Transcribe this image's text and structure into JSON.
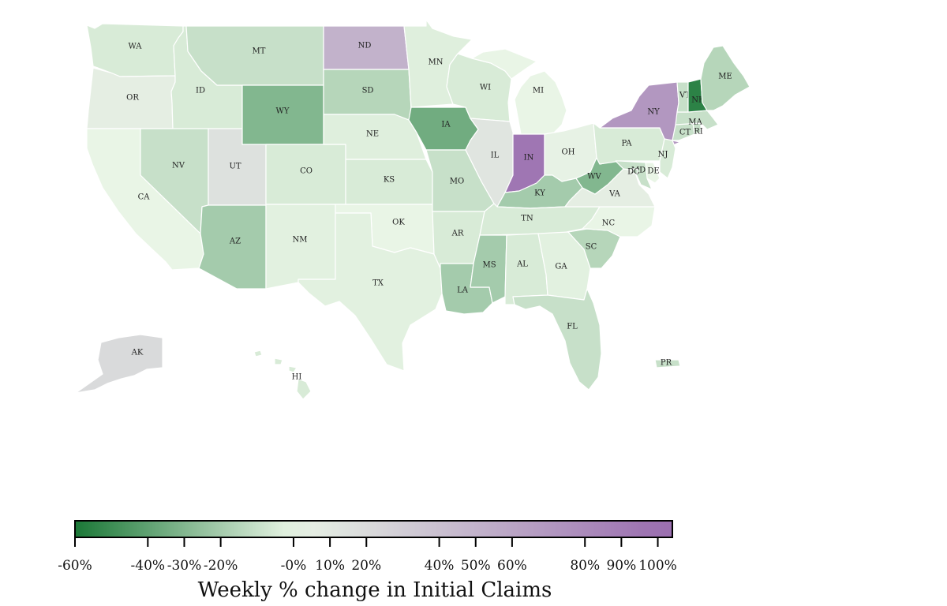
{
  "colors": {
    "scale_min": "#1b7837",
    "scale_mid": "#e9f5e6",
    "scale_max": "#9b6fb0"
  },
  "map": {
    "title": "",
    "states": [
      {
        "abbr": "WA",
        "change": -5
      },
      {
        "abbr": "OR",
        "change": 5
      },
      {
        "abbr": "CA",
        "change": 0
      },
      {
        "abbr": "ID",
        "change": -5
      },
      {
        "abbr": "NV",
        "change": -10
      },
      {
        "abbr": "UT",
        "change": 15
      },
      {
        "abbr": "AZ",
        "change": -20
      },
      {
        "abbr": "MT",
        "change": -10
      },
      {
        "abbr": "WY",
        "change": -30
      },
      {
        "abbr": "CO",
        "change": -5
      },
      {
        "abbr": "NM",
        "change": -2
      },
      {
        "abbr": "ND",
        "change": 50
      },
      {
        "abbr": "SD",
        "change": -15
      },
      {
        "abbr": "NE",
        "change": -3
      },
      {
        "abbr": "KS",
        "change": -5
      },
      {
        "abbr": "OK",
        "change": 0
      },
      {
        "abbr": "TX",
        "change": -2
      },
      {
        "abbr": "MN",
        "change": -3
      },
      {
        "abbr": "IA",
        "change": -35
      },
      {
        "abbr": "MO",
        "change": -10
      },
      {
        "abbr": "AR",
        "change": -5
      },
      {
        "abbr": "LA",
        "change": -20
      },
      {
        "abbr": "WI",
        "change": -5
      },
      {
        "abbr": "IL",
        "change": 12
      },
      {
        "abbr": "MI",
        "change": 0
      },
      {
        "abbr": "IN",
        "change": 95
      },
      {
        "abbr": "OH",
        "change": 2
      },
      {
        "abbr": "KY",
        "change": -20
      },
      {
        "abbr": "TN",
        "change": -5
      },
      {
        "abbr": "MS",
        "change": -20
      },
      {
        "abbr": "AL",
        "change": -5
      },
      {
        "abbr": "GA",
        "change": -2
      },
      {
        "abbr": "FL",
        "change": -10
      },
      {
        "abbr": "SC",
        "change": -15
      },
      {
        "abbr": "NC",
        "change": 0
      },
      {
        "abbr": "VA",
        "change": 5
      },
      {
        "abbr": "WV",
        "change": -30
      },
      {
        "abbr": "PA",
        "change": -5
      },
      {
        "abbr": "NY",
        "change": 70
      },
      {
        "abbr": "NJ",
        "change": -5
      },
      {
        "abbr": "DE",
        "change": 0
      },
      {
        "abbr": "MD",
        "change": -10
      },
      {
        "abbr": "DC",
        "change": -10
      },
      {
        "abbr": "CT",
        "change": -10
      },
      {
        "abbr": "RI",
        "change": -10
      },
      {
        "abbr": "MA",
        "change": -10
      },
      {
        "abbr": "VT",
        "change": -10
      },
      {
        "abbr": "NH",
        "change": -55
      },
      {
        "abbr": "ME",
        "change": -15
      },
      {
        "abbr": "AK",
        "change": 20
      },
      {
        "abbr": "HI",
        "change": -5
      },
      {
        "abbr": "PR",
        "change": -10
      }
    ]
  },
  "legend": {
    "title": "Weekly % change in Initial Claims",
    "range": [
      -60,
      104
    ],
    "ticks": [
      {
        "value": -60,
        "label": "-60%"
      },
      {
        "value": -40,
        "label": "-40%"
      },
      {
        "value": -30,
        "label": "-30%"
      },
      {
        "value": -20,
        "label": "-20%"
      },
      {
        "value": 0,
        "label": "-0%"
      },
      {
        "value": 10,
        "label": "10%"
      },
      {
        "value": 20,
        "label": "20%"
      },
      {
        "value": 40,
        "label": "40%"
      },
      {
        "value": 50,
        "label": "50%"
      },
      {
        "value": 60,
        "label": "60%"
      },
      {
        "value": 80,
        "label": "80%"
      },
      {
        "value": 90,
        "label": "90%"
      },
      {
        "value": 100,
        "label": "100%"
      }
    ]
  }
}
